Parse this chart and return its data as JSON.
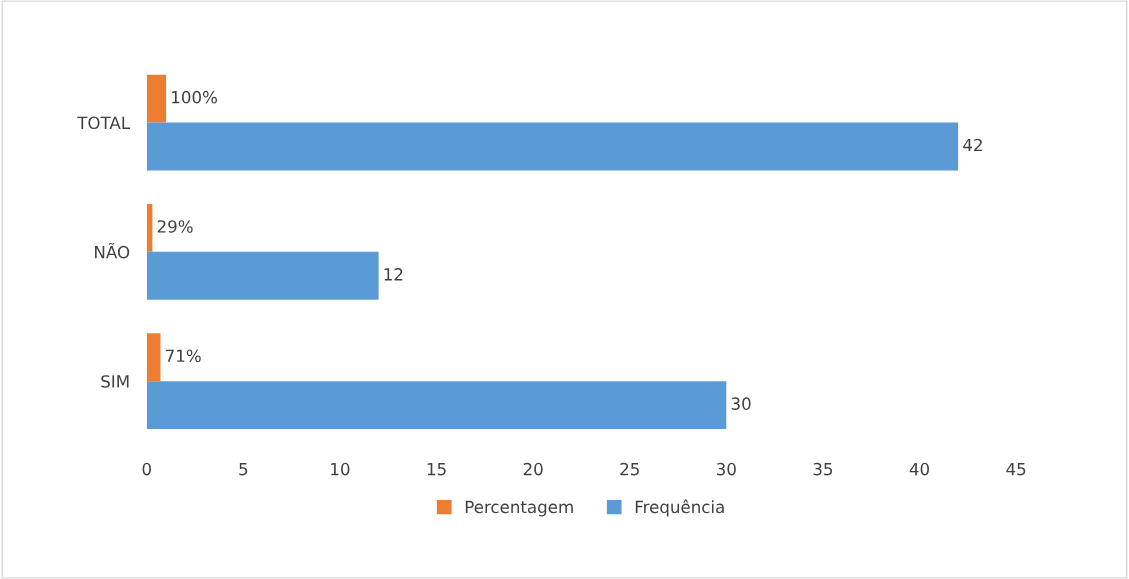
{
  "chart_data": {
    "type": "bar",
    "orientation": "horizontal",
    "categories": [
      "TOTAL",
      "NÃO",
      "SIM"
    ],
    "series": [
      {
        "name": "Percentagem",
        "color": "#ed7d31",
        "values": [
          1.0,
          0.29,
          0.71
        ],
        "value_labels": [
          "100%",
          "29%",
          "71%"
        ]
      },
      {
        "name": "Frequência",
        "color": "#5b9bd5",
        "values": [
          42,
          12,
          30
        ],
        "value_labels": [
          "42",
          "12",
          "30"
        ]
      }
    ],
    "xlim": [
      0,
      45
    ],
    "xticks": [
      0,
      5,
      10,
      15,
      20,
      25,
      30,
      35,
      40,
      45
    ],
    "grid": false,
    "legend": "bottom"
  }
}
